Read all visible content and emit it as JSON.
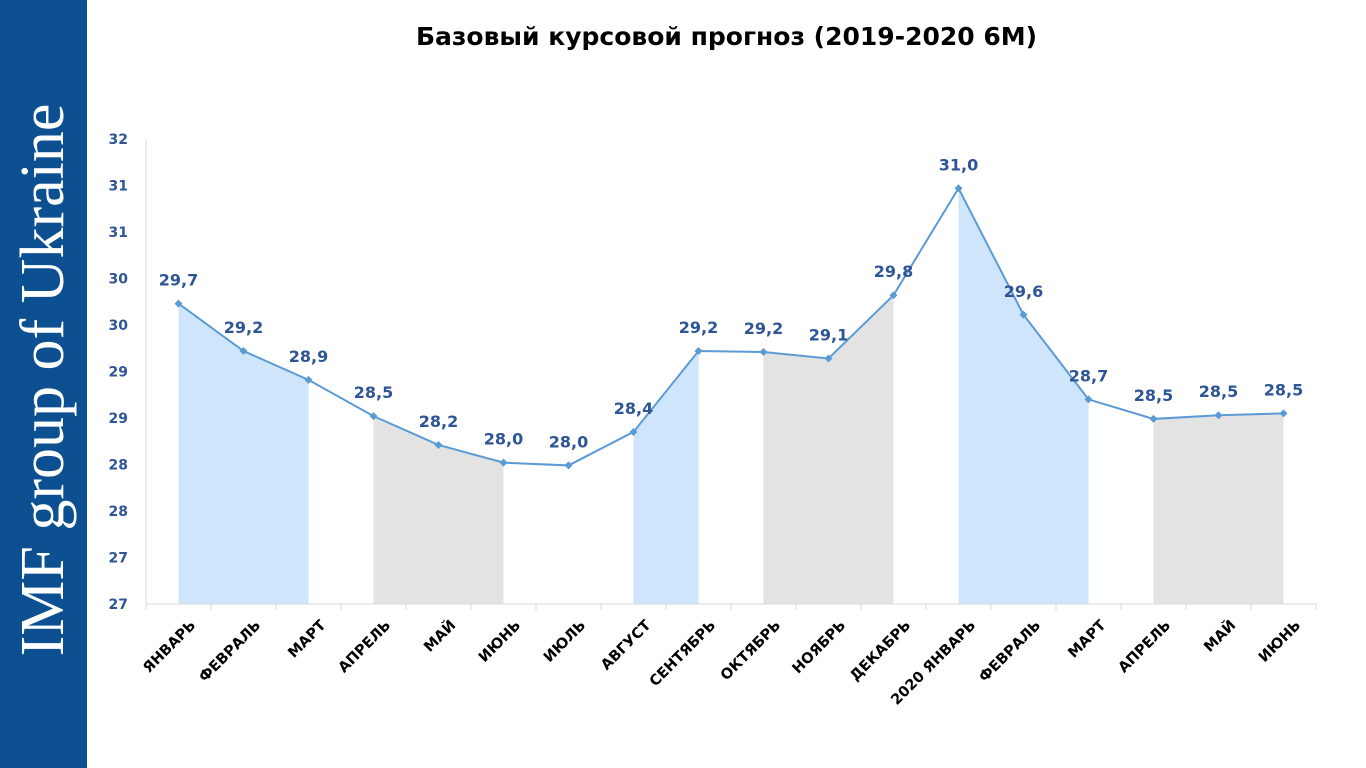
{
  "sidebar": {
    "text": "IMF group of Ukraine",
    "background": "#0d5091"
  },
  "chart_data": {
    "type": "line",
    "title": "Базовый курсовой прогноз (2019-2020 6М)",
    "xlabel": "",
    "ylabel": "",
    "categories": [
      "ЯНВАРЬ",
      "ФЕВРАЛЬ",
      "МАРТ",
      "АПРЕЛЬ",
      "МАЙ",
      "ИЮНЬ",
      "ИЮЛЬ",
      "АВГУСТ",
      "СЕНТЯБРЬ",
      "ОКТЯБРЬ",
      "НОЯБРЬ",
      "ДЕКАБРЬ",
      "2020 ЯНВАРЬ",
      "ФЕВРАЛЬ",
      "МАРТ",
      "АПРЕЛЬ",
      "МАЙ",
      "ИЮНЬ"
    ],
    "values": [
      29.73,
      29.22,
      28.91,
      28.52,
      28.21,
      28.02,
      27.99,
      28.35,
      29.22,
      29.21,
      29.14,
      29.82,
      30.97,
      29.61,
      28.7,
      28.49,
      28.53,
      28.55
    ],
    "data_labels": [
      "29,7",
      "29,2",
      "28,9",
      "28,5",
      "28,2",
      "28,0",
      "28,0",
      "28,4",
      "29,2",
      "29,2",
      "29,1",
      "29,8",
      "31,0",
      "29,6",
      "28,7",
      "28,5",
      "28,5",
      "28,5"
    ],
    "ylim": [
      26.5,
      31.5
    ],
    "y_tick_values": [
      26.5,
      27,
      27.5,
      28,
      28.5,
      29,
      29.5,
      30,
      30.5,
      31,
      31.5
    ],
    "y_tick_labels": [
      "27",
      "27",
      "28",
      "28",
      "29",
      "29",
      "30",
      "30",
      "31",
      "31",
      "32"
    ],
    "band_colors": [
      "#cfe5fb",
      "#e3e3e3"
    ],
    "bands": [
      [
        0,
        2,
        0
      ],
      [
        3,
        5,
        1
      ],
      [
        7,
        8,
        0
      ],
      [
        9,
        11,
        1
      ],
      [
        12,
        14,
        0
      ],
      [
        15,
        17,
        1
      ]
    ],
    "line_color": "#5b9bd5",
    "label_color": "#2e5596",
    "grid": false,
    "legend": "none"
  }
}
